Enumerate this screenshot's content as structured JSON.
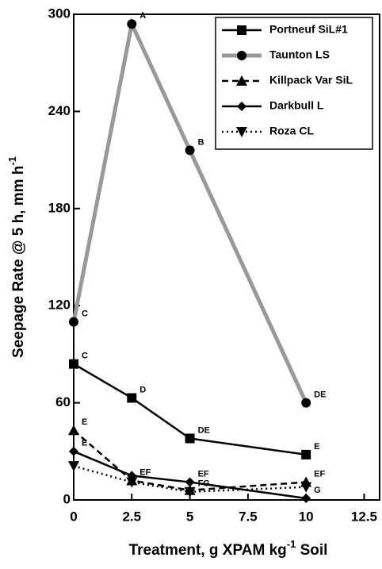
{
  "chart_data": {
    "type": "line",
    "ylabel": {
      "text": "Seepage Rate @ 5 h, mm h",
      "sup": "-1"
    },
    "xlabel": {
      "text": "Treatment,  g XPAM kg",
      "sup": "-1",
      "after": " Soil"
    },
    "x": [
      0,
      2.5,
      5,
      10
    ],
    "series": [
      {
        "name": "Portneuf SiL#1",
        "color": "#000000",
        "dash": "solid",
        "marker": "square",
        "values": [
          84,
          63,
          38,
          28
        ],
        "labels": [
          "C",
          "D",
          "DE",
          "E"
        ]
      },
      {
        "name": "Taunton LS",
        "color": "#999999",
        "dash": "solid",
        "marker": "circle",
        "values": [
          110,
          294,
          216,
          60
        ],
        "labels": [
          "C",
          "A",
          "B",
          "DE"
        ]
      },
      {
        "name": "Killpack Var SiL",
        "color": "#000000",
        "dash": "dashed",
        "marker": "triangle-up",
        "values": [
          43,
          12,
          6,
          11
        ],
        "labels": [
          "E",
          "EF",
          null,
          "EF"
        ]
      },
      {
        "name": "Darkbull L",
        "color": "#000000",
        "dash": "solid",
        "marker": "diamond",
        "values": [
          30,
          15,
          11,
          1
        ],
        "labels": [
          "E",
          null,
          "EF",
          "G"
        ]
      },
      {
        "name": "Roza CL",
        "color": "#000000",
        "dash": "dotted",
        "marker": "triangle-down",
        "values": [
          21,
          11,
          5,
          8
        ],
        "labels": [
          null,
          null,
          "FG",
          null
        ]
      }
    ],
    "xlim": [
      0,
      13.2
    ],
    "ylim": [
      0,
      300
    ],
    "xticks": [
      0,
      2.5,
      5,
      7.5,
      10,
      12.5
    ],
    "yticks": [
      0,
      60,
      120,
      180,
      240,
      300
    ],
    "legend": "top-right"
  }
}
